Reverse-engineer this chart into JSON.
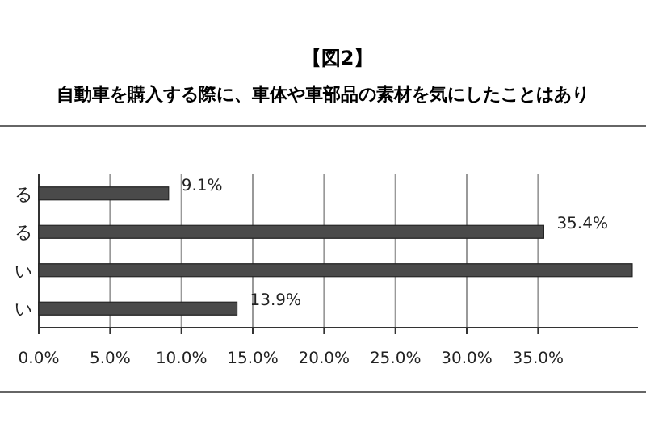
{
  "chart_data": {
    "type": "bar",
    "orientation": "horizontal",
    "title": "【図2】",
    "subtitle": "自動車を購入する際に、車体や車部品の素材を気にしたことはあり",
    "categories": [
      "る",
      "る",
      "い",
      "い"
    ],
    "values": [
      9.1,
      35.4,
      41.6,
      13.9
    ],
    "value_labels": [
      "9.1%",
      "35.4%",
      null,
      "13.9%"
    ],
    "color": "#4a4a4a",
    "xlim": [
      0,
      42
    ],
    "xticks": [
      {
        "value": 0,
        "label": "0.0%"
      },
      {
        "value": 5,
        "label": "5.0%"
      },
      {
        "value": 10,
        "label": "10.0%"
      },
      {
        "value": 15,
        "label": "15.0%"
      },
      {
        "value": 20,
        "label": "20.0%"
      },
      {
        "value": 25,
        "label": "25.0%"
      },
      {
        "value": 30,
        "label": "30.0%"
      },
      {
        "value": 35,
        "label": "35.0%"
      }
    ],
    "grid": "x"
  }
}
